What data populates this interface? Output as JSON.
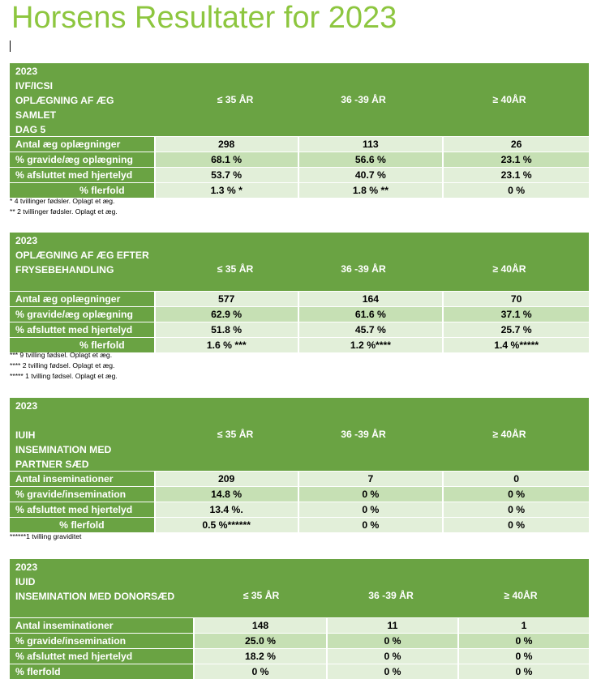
{
  "title": "Horsens Resultater for 2023",
  "colors": {
    "title": "#8dc63f",
    "header": "#6aa343",
    "row_light": "#e2efd9",
    "row_mid": "#c6e0b4"
  },
  "tables": [
    {
      "header_lines": [
        "2023",
        "IVF/ICSI",
        "OPLÆGNING AF ÆG",
        "SAMLET",
        "DAG 5"
      ],
      "columns": [
        "≤ 35 ÅR",
        "36 -39 ÅR",
        "≥ 40ÅR"
      ],
      "rows": [
        {
          "label": "Antal æg oplægninger",
          "values": [
            "298",
            "113",
            "26"
          ]
        },
        {
          "label": "% gravide/æg oplægning",
          "values": [
            "68.1 %",
            "56.6 %",
            "23.1 %"
          ]
        },
        {
          "label": "% afsluttet med hjertelyd",
          "values": [
            "53.7 %",
            "40.7 %",
            "23.1 %"
          ]
        },
        {
          "label": "%  flerfold",
          "values": [
            "1.3 % *",
            "1.8  % **",
            "0 %"
          ]
        }
      ],
      "notes": [
        "* 4 tvillinger fødsler. Oplagt et æg.",
        "** 2 tvillinger fødsler. Oplagt et æg."
      ]
    },
    {
      "header_lines": [
        "2023",
        "OPLÆGNING AF ÆG EFTER",
        "FRYSEBEHANDLING"
      ],
      "columns": [
        "≤ 35 ÅR",
        "36 -39 ÅR",
        "≥ 40ÅR"
      ],
      "rows": [
        {
          "label": "Antal  æg oplægninger",
          "values": [
            "577",
            "164",
            "70"
          ]
        },
        {
          "label": "% gravide/æg oplægning",
          "values": [
            "62.9 %",
            "61.6 %",
            "37.1 %"
          ]
        },
        {
          "label": "% afsluttet med hjertelyd",
          "values": [
            "51.8 %",
            "45.7 %",
            "25.7 %"
          ]
        },
        {
          "label": "%  flerfold",
          "values": [
            "1.6 % ***",
            "1.2 %****",
            "1.4 %*****"
          ]
        }
      ],
      "notes": [
        "*** 9 tvilling fødsel. Oplagt et æg.",
        "**** 2 tvilling fødsel. Oplagt et æg.",
        "***** 1 tvilling fødsel. Oplagt et æg."
      ]
    },
    {
      "header_lines": [
        "2023",
        "",
        "IUIH",
        "INSEMINATION MED",
        "PARTNER SÆD"
      ],
      "columns": [
        "≤ 35 ÅR",
        "36 -39 ÅR",
        "≥ 40ÅR"
      ],
      "rows": [
        {
          "label": "Antal inseminationer",
          "values": [
            "209",
            "7",
            "0"
          ]
        },
        {
          "label": "% gravide/insemination",
          "values": [
            "14.8 %",
            "0 %",
            "0 %"
          ]
        },
        {
          "label": "% afsluttet med hjertelyd",
          "values": [
            "13.4 %.",
            "0 %",
            "0 %"
          ]
        },
        {
          "label": "%  flerfold",
          "values": [
            "0.5 %******",
            "0 %",
            "0 %"
          ]
        }
      ],
      "notes": [
        "******1 tvilling graviditet"
      ]
    },
    {
      "header_lines": [
        "2023",
        "IUID",
        "INSEMINATION MED DONORSÆD"
      ],
      "columns": [
        "≤ 35 ÅR",
        "36 -39 ÅR",
        "≥ 40ÅR"
      ],
      "rows": [
        {
          "label": "Antal inseminationer",
          "values": [
            "148",
            "11",
            "1"
          ]
        },
        {
          "label": "% gravide/insemination",
          "values": [
            "25.0 %",
            "0 %",
            "0 %"
          ]
        },
        {
          "label": "% afsluttet med hjertelyd",
          "values": [
            "18.2 %",
            "0 %",
            "0 %"
          ]
        },
        {
          "label": "%  flerfold",
          "values": [
            "0 %",
            "0 %",
            "0 %"
          ]
        }
      ],
      "notes": []
    }
  ]
}
